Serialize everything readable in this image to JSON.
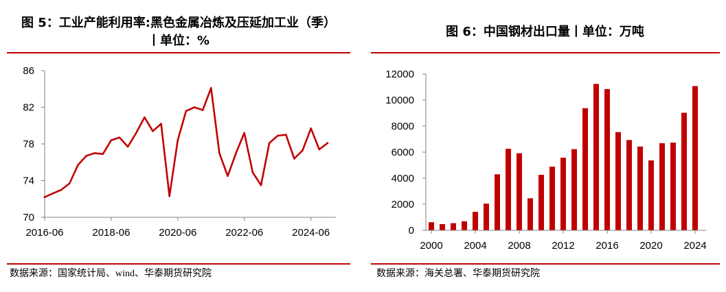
{
  "colors": {
    "accent": "#C00000",
    "axis": "#808080",
    "text": "#000000"
  },
  "chart_data": [
    {
      "type": "line",
      "title_line1": "图 5：工业产能利用率:黑色金属冶炼及压延加工业（季）",
      "title_line2": "丨单位：%",
      "source": "数据来源：国家统计局、wind、华泰期货研究院",
      "x": [
        2016.5,
        2016.75,
        2017.0,
        2017.25,
        2017.5,
        2017.75,
        2018.0,
        2018.25,
        2018.5,
        2018.75,
        2019.0,
        2019.25,
        2019.5,
        2019.75,
        2020.0,
        2020.25,
        2020.5,
        2020.75,
        2021.0,
        2021.25,
        2021.5,
        2021.75,
        2022.0,
        2022.25,
        2022.5,
        2022.75,
        2023.0,
        2023.25,
        2023.5,
        2023.75,
        2024.0,
        2024.25,
        2024.5,
        2024.75,
        2025.0
      ],
      "values": [
        72.2,
        72.6,
        73.0,
        73.7,
        75.7,
        76.7,
        77.0,
        76.9,
        78.4,
        78.7,
        77.7,
        79.2,
        80.9,
        79.4,
        80.2,
        72.3,
        78.4,
        81.6,
        82.0,
        81.7,
        84.1,
        77.0,
        74.5,
        77.0,
        79.2,
        74.9,
        73.5,
        78.1,
        78.9,
        79.0,
        76.4,
        77.3,
        79.7,
        77.4,
        78.1
      ],
      "xlim": [
        2016.5,
        2025.25
      ],
      "ylim": [
        70,
        86
      ],
      "yticks": [
        70,
        74,
        78,
        82,
        86
      ],
      "xticks": [
        {
          "value": 2016.5,
          "label": "2016-06"
        },
        {
          "value": 2018.5,
          "label": "2018-06"
        },
        {
          "value": 2020.5,
          "label": "2020-06"
        },
        {
          "value": 2022.5,
          "label": "2022-06"
        },
        {
          "value": 2024.5,
          "label": "2024-06"
        }
      ],
      "grid": false
    },
    {
      "type": "bar",
      "title": "图 6：中国钢材出口量丨单位：万吨",
      "source": "数据来源：海关总署、华泰期货研究院",
      "x": [
        2000,
        2001,
        2002,
        2003,
        2004,
        2005,
        2006,
        2007,
        2008,
        2009,
        2010,
        2011,
        2012,
        2013,
        2014,
        2015,
        2016,
        2017,
        2018,
        2019,
        2020,
        2021,
        2022,
        2023,
        2024
      ],
      "values": [
        621,
        474,
        545,
        696,
        1423,
        2052,
        4301,
        6265,
        5918,
        2460,
        4256,
        4888,
        5573,
        6234,
        9378,
        11240,
        10843,
        7541,
        6934,
        6429,
        5367,
        6690,
        6732,
        9026,
        11072
      ],
      "xlim": [
        1999.5,
        2024.5
      ],
      "ylim": [
        0,
        12000
      ],
      "yticks": [
        0,
        2000,
        4000,
        6000,
        8000,
        10000,
        12000
      ],
      "xticks": [
        2000,
        2004,
        2008,
        2012,
        2016,
        2020,
        2024
      ],
      "grid": false
    }
  ]
}
